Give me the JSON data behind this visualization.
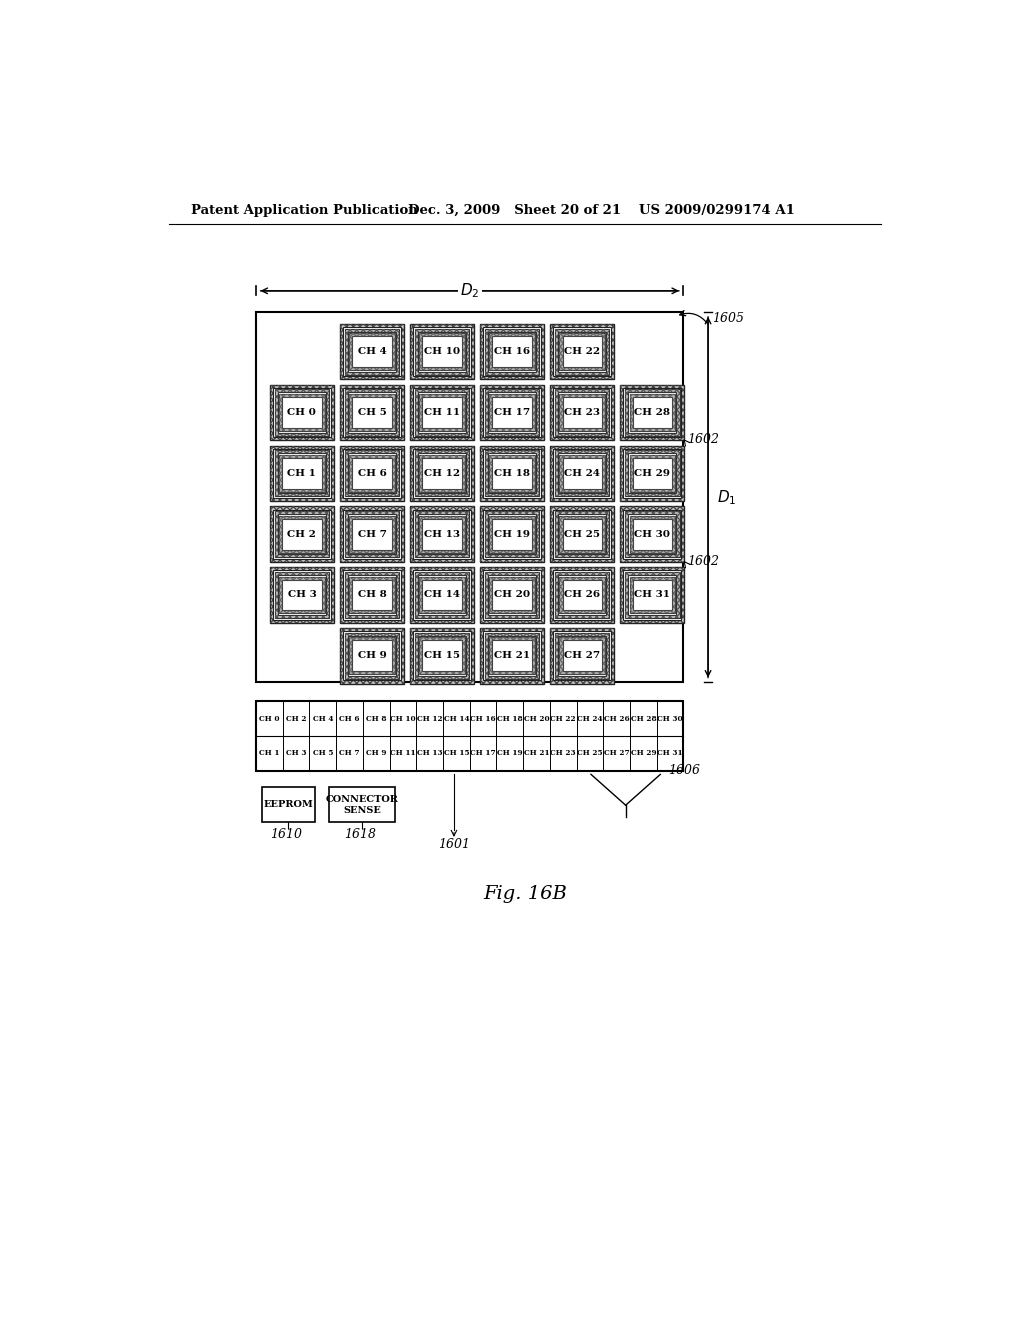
{
  "header_left": "Patent Application Publication",
  "header_mid": "Dec. 3, 2009   Sheet 20 of 21",
  "header_right": "US 2009/0299174 A1",
  "figure_label": "Fig. 16B",
  "bg_color": "#ffffff",
  "sensor_layout": [
    {
      "label": "CH 4",
      "col": 1,
      "row": 0
    },
    {
      "label": "CH 10",
      "col": 2,
      "row": 0
    },
    {
      "label": "CH 16",
      "col": 3,
      "row": 0
    },
    {
      "label": "CH 22",
      "col": 4,
      "row": 0
    },
    {
      "label": "CH 0",
      "col": 0,
      "row": 1
    },
    {
      "label": "CH 5",
      "col": 1,
      "row": 1
    },
    {
      "label": "CH 11",
      "col": 2,
      "row": 1
    },
    {
      "label": "CH 17",
      "col": 3,
      "row": 1
    },
    {
      "label": "CH 23",
      "col": 4,
      "row": 1
    },
    {
      "label": "CH 28",
      "col": 5,
      "row": 1
    },
    {
      "label": "CH 1",
      "col": 0,
      "row": 2
    },
    {
      "label": "CH 6",
      "col": 1,
      "row": 2
    },
    {
      "label": "CH 12",
      "col": 2,
      "row": 2
    },
    {
      "label": "CH 18",
      "col": 3,
      "row": 2
    },
    {
      "label": "CH 24",
      "col": 4,
      "row": 2
    },
    {
      "label": "CH 29",
      "col": 5,
      "row": 2
    },
    {
      "label": "CH 2",
      "col": 0,
      "row": 3
    },
    {
      "label": "CH 7",
      "col": 1,
      "row": 3
    },
    {
      "label": "CH 13",
      "col": 2,
      "row": 3
    },
    {
      "label": "CH 19",
      "col": 3,
      "row": 3
    },
    {
      "label": "CH 25",
      "col": 4,
      "row": 3
    },
    {
      "label": "CH 30",
      "col": 5,
      "row": 3
    },
    {
      "label": "CH 3",
      "col": 0,
      "row": 4
    },
    {
      "label": "CH 8",
      "col": 1,
      "row": 4
    },
    {
      "label": "CH 14",
      "col": 2,
      "row": 4
    },
    {
      "label": "CH 20",
      "col": 3,
      "row": 4
    },
    {
      "label": "CH 26",
      "col": 4,
      "row": 4
    },
    {
      "label": "CH 31",
      "col": 5,
      "row": 4
    },
    {
      "label": "CH 9",
      "col": 1,
      "row": 5
    },
    {
      "label": "CH 15",
      "col": 2,
      "row": 5
    },
    {
      "label": "CH 21",
      "col": 3,
      "row": 5
    },
    {
      "label": "CH 27",
      "col": 4,
      "row": 5
    }
  ],
  "conn_row1": [
    "CH 0",
    "CH 2",
    "CH 4",
    "CH 6",
    "CH 8",
    "CH 10",
    "CH 12",
    "CH 14",
    "CH 16",
    "CH 18",
    "CH 20",
    "CH 22",
    "CH 24",
    "CH 26",
    "CH 28",
    "CH 30"
  ],
  "conn_row2": [
    "CH 1",
    "CH 3",
    "CH 5",
    "CH 7",
    "CH 9",
    "CH 11",
    "CH 13",
    "CH 15",
    "CH 17",
    "CH 19",
    "CH 21",
    "CH 23",
    "CH 25",
    "CH 27",
    "CH 29",
    "CH 31"
  ]
}
